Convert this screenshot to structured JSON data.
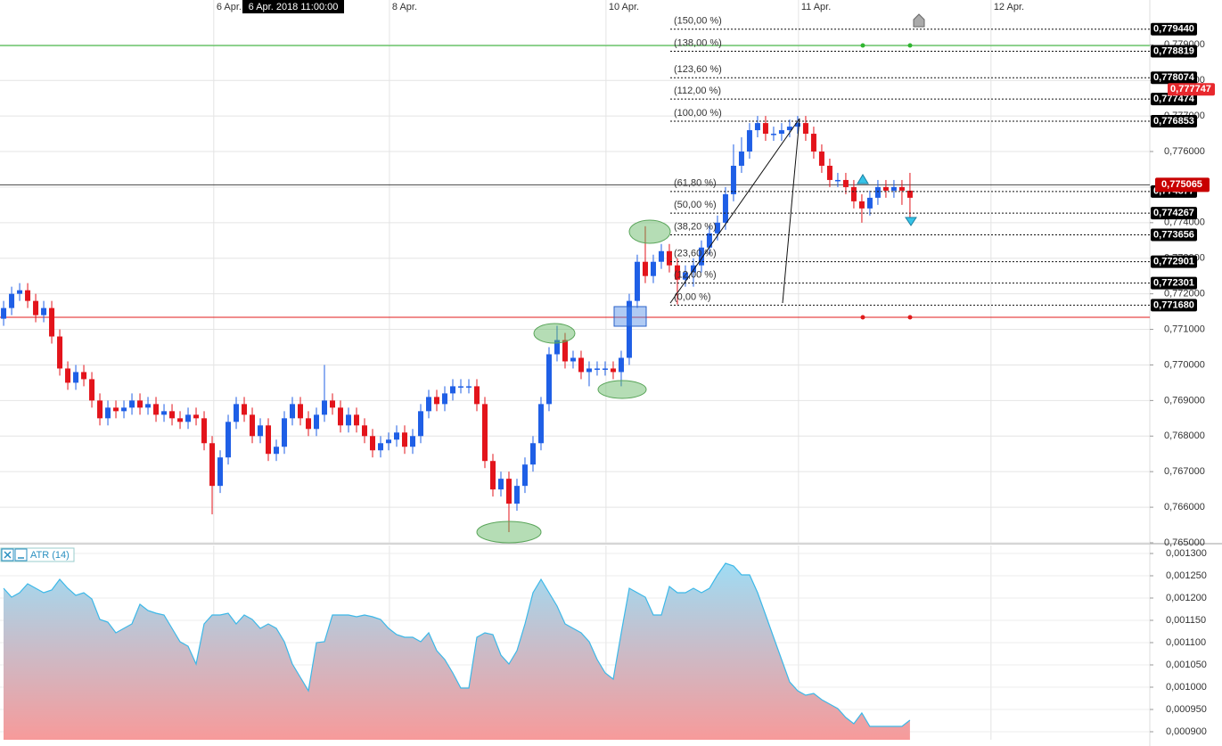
{
  "chart_data": [
    {
      "type": "candlestick",
      "crosshair_label": "6 Apr. 2018 11:00:00",
      "up_color": "#1f5fe6",
      "down_color": "#e3141b",
      "grid": true,
      "xlim": [
        -0.45,
        142.9
      ],
      "xticks": [
        {
          "value": 26.2,
          "label": "6 Apr."
        },
        {
          "value": 48.1,
          "label": "8 Apr."
        },
        {
          "value": 75.1,
          "label": "10 Apr."
        },
        {
          "value": 99.1,
          "label": "11 Apr."
        },
        {
          "value": 123.1,
          "label": "12 Apr."
        }
      ],
      "ylim": [
        0.765,
        0.78026
      ],
      "yticks": [
        {
          "value": 0.765,
          "label": "0,765000"
        },
        {
          "value": 0.766,
          "label": "0,766000"
        },
        {
          "value": 0.767,
          "label": "0,767000"
        },
        {
          "value": 0.768,
          "label": "0,768000"
        },
        {
          "value": 0.769,
          "label": "0,769000"
        },
        {
          "value": 0.77,
          "label": "0,770000"
        },
        {
          "value": 0.771,
          "label": "0,771000"
        },
        {
          "value": 0.772,
          "label": "0,772000"
        },
        {
          "value": 0.773,
          "label": "0,773000"
        },
        {
          "value": 0.774,
          "label": "0,774000"
        },
        {
          "value": 0.775,
          "label": "0,775000"
        },
        {
          "value": 0.776,
          "label": "0,776000"
        },
        {
          "value": 0.777,
          "label": "0,777000"
        },
        {
          "value": 0.778,
          "label": "0,778000"
        },
        {
          "value": 0.779,
          "label": "0,779000"
        }
      ],
      "open": [
        0.7713,
        0.7716,
        0.772,
        0.7721,
        0.7718,
        0.7714,
        0.7716,
        0.7708,
        0.7699,
        0.7695,
        0.7698,
        0.7696,
        0.769,
        0.7685,
        0.7688,
        0.7687,
        0.7688,
        0.769,
        0.7688,
        0.7689,
        0.7686,
        0.7687,
        0.7685,
        0.7684,
        0.7686,
        0.7685,
        0.7678,
        0.7666,
        0.7674,
        0.7684,
        0.7689,
        0.7686,
        0.768,
        0.7683,
        0.7675,
        0.7677,
        0.7685,
        0.7689,
        0.7685,
        0.7682,
        0.7686,
        0.769,
        0.7688,
        0.7683,
        0.7686,
        0.7683,
        0.768,
        0.7676,
        0.7678,
        0.7679,
        0.7681,
        0.7677,
        0.768,
        0.7687,
        0.7691,
        0.7689,
        0.7692,
        0.7694,
        0.7694,
        0.7694,
        0.7689,
        0.7673,
        0.7665,
        0.7668,
        0.7661,
        0.7666,
        0.7672,
        0.7678,
        0.7689,
        0.7703,
        0.7707,
        0.7701,
        0.7702,
        0.7698,
        0.7699,
        0.7699,
        0.7699,
        0.7698,
        0.7702,
        0.7718,
        0.7729,
        0.7725,
        0.7729,
        0.7732,
        0.7728,
        0.7724,
        0.7726,
        0.7728,
        0.7733,
        0.7737,
        0.774,
        0.7748,
        0.7756,
        0.776,
        0.7766,
        0.7768,
        0.7765,
        0.7765,
        0.7766,
        0.7767,
        0.7768,
        0.7765,
        0.776,
        0.7756,
        0.7752,
        0.7752,
        0.775,
        0.7746,
        0.7744,
        0.7747,
        0.775,
        0.7749,
        0.775,
        0.7749
      ],
      "high": [
        0.7718,
        0.7722,
        0.7723,
        0.7723,
        0.772,
        0.7718,
        0.7718,
        0.771,
        0.7701,
        0.77,
        0.77,
        0.7698,
        0.7692,
        0.769,
        0.769,
        0.769,
        0.7692,
        0.7692,
        0.7691,
        0.7691,
        0.7689,
        0.7689,
        0.7687,
        0.7688,
        0.7688,
        0.7687,
        0.768,
        0.7676,
        0.7686,
        0.7691,
        0.7691,
        0.7688,
        0.7685,
        0.7685,
        0.7679,
        0.7687,
        0.7691,
        0.7691,
        0.7687,
        0.7688,
        0.77,
        0.7692,
        0.769,
        0.7688,
        0.7688,
        0.7685,
        0.7682,
        0.768,
        0.7681,
        0.7683,
        0.7683,
        0.7682,
        0.7689,
        0.7693,
        0.7693,
        0.7694,
        0.7696,
        0.7696,
        0.7696,
        0.7696,
        0.7691,
        0.7675,
        0.767,
        0.767,
        0.7668,
        0.7674,
        0.768,
        0.7691,
        0.7705,
        0.7711,
        0.7709,
        0.7704,
        0.7704,
        0.7701,
        0.7701,
        0.7701,
        0.7701,
        0.7704,
        0.772,
        0.7731,
        0.7739,
        0.7731,
        0.7734,
        0.7734,
        0.773,
        0.7728,
        0.773,
        0.7735,
        0.7739,
        0.7742,
        0.775,
        0.7762,
        0.7764,
        0.7768,
        0.777,
        0.777,
        0.7767,
        0.7768,
        0.7769,
        0.777,
        0.777,
        0.7767,
        0.7762,
        0.7758,
        0.7754,
        0.7754,
        0.7752,
        0.7748,
        0.7749,
        0.7752,
        0.7752,
        0.7752,
        0.7752,
        0.7754
      ],
      "low": [
        0.7711,
        0.7714,
        0.7718,
        0.7716,
        0.7712,
        0.7712,
        0.7706,
        0.7697,
        0.7693,
        0.7693,
        0.7694,
        0.7688,
        0.7683,
        0.7683,
        0.7685,
        0.7685,
        0.7686,
        0.7686,
        0.7686,
        0.7684,
        0.7684,
        0.7683,
        0.7682,
        0.7682,
        0.7683,
        0.7676,
        0.7658,
        0.7664,
        0.7672,
        0.7682,
        0.7684,
        0.7678,
        0.7678,
        0.7673,
        0.7673,
        0.7675,
        0.7683,
        0.7683,
        0.768,
        0.768,
        0.7684,
        0.7686,
        0.7681,
        0.7681,
        0.7681,
        0.7678,
        0.7674,
        0.7674,
        0.7676,
        0.7677,
        0.7675,
        0.7675,
        0.7678,
        0.7685,
        0.7687,
        0.7687,
        0.769,
        0.7692,
        0.7692,
        0.7687,
        0.7671,
        0.7663,
        0.7663,
        0.7653,
        0.7659,
        0.7664,
        0.767,
        0.7676,
        0.7687,
        0.7701,
        0.7699,
        0.7699,
        0.7696,
        0.7694,
        0.7697,
        0.7697,
        0.7696,
        0.7694,
        0.77,
        0.7716,
        0.7723,
        0.7723,
        0.7727,
        0.7726,
        0.7717,
        0.7722,
        0.7722,
        0.7726,
        0.7731,
        0.7735,
        0.7738,
        0.7746,
        0.7754,
        0.7758,
        0.7764,
        0.7763,
        0.7763,
        0.7763,
        0.7764,
        0.7765,
        0.7763,
        0.7758,
        0.7754,
        0.775,
        0.775,
        0.7748,
        0.7744,
        0.774,
        0.7742,
        0.7745,
        0.7747,
        0.7747,
        0.7745,
        0.774
      ],
      "close": [
        0.7716,
        0.772,
        0.7721,
        0.7718,
        0.7714,
        0.7716,
        0.7708,
        0.7699,
        0.7695,
        0.7698,
        0.7696,
        0.769,
        0.7685,
        0.7688,
        0.7687,
        0.7688,
        0.769,
        0.7688,
        0.7689,
        0.7686,
        0.7687,
        0.7685,
        0.7684,
        0.7686,
        0.7685,
        0.7678,
        0.7666,
        0.7674,
        0.7684,
        0.7689,
        0.7686,
        0.768,
        0.7683,
        0.7675,
        0.7677,
        0.7685,
        0.7689,
        0.7685,
        0.7682,
        0.7686,
        0.769,
        0.7688,
        0.7683,
        0.7686,
        0.7683,
        0.768,
        0.7676,
        0.7678,
        0.7679,
        0.7681,
        0.7677,
        0.768,
        0.7687,
        0.7691,
        0.7689,
        0.7692,
        0.7694,
        0.7694,
        0.7694,
        0.7689,
        0.7673,
        0.7665,
        0.7668,
        0.7661,
        0.7666,
        0.7672,
        0.7678,
        0.7689,
        0.7703,
        0.7707,
        0.7701,
        0.7702,
        0.7698,
        0.7699,
        0.7699,
        0.7699,
        0.7698,
        0.7702,
        0.7718,
        0.7729,
        0.7725,
        0.7729,
        0.7732,
        0.7728,
        0.7724,
        0.7726,
        0.7728,
        0.7733,
        0.7737,
        0.774,
        0.7748,
        0.7756,
        0.776,
        0.7766,
        0.7768,
        0.7765,
        0.7765,
        0.7766,
        0.7767,
        0.7768,
        0.7765,
        0.776,
        0.7756,
        0.7752,
        0.7752,
        0.775,
        0.7746,
        0.7744,
        0.7747,
        0.775,
        0.7749,
        0.775,
        0.7749,
        0.7747
      ],
      "fib_levels": {
        "labels": [
          "(150,00 %)",
          "(138,00 %)",
          "(123,60 %)",
          "(112,00 %)",
          "(100,00 %)",
          "(61,80 %)",
          "(50,00 %)",
          "(38,20 %)",
          "(23,60 %)",
          "(12,00 %)",
          "(0,00 %)"
        ],
        "values": [
          0.77944,
          0.778819,
          0.778074,
          0.777474,
          0.776853,
          0.774877,
          0.774267,
          0.773656,
          0.772901,
          0.772301,
          0.77168
        ],
        "value_labels": [
          "0,779440",
          "0,778819",
          "0,778074",
          "0,777474",
          "0,776853",
          "0,774877",
          "0,774267",
          "0,773656",
          "0,772901",
          "0,772301",
          "0,771680"
        ]
      },
      "hlines": [
        {
          "value": 0.77898,
          "color": "#2fb52f"
        },
        {
          "value": 0.77134,
          "color": "#e01b1b"
        }
      ],
      "last_price": {
        "value": 0.775065,
        "label": "0,775065",
        "color": "#c80000"
      },
      "ask_price": {
        "value": 0.777747,
        "label": "0,777747",
        "color": "#e8282d"
      }
    },
    {
      "type": "area",
      "title": "ATR (14)",
      "color": "#3cb8e8",
      "xlim": [
        -0.45,
        142.9
      ],
      "ylim": [
        0.000882,
        0.001318
      ],
      "yticks": [
        {
          "value": 0.0009,
          "label": "0,000900"
        },
        {
          "value": 0.00095,
          "label": "0,000950"
        },
        {
          "value": 0.001,
          "label": "0,001000"
        },
        {
          "value": 0.00105,
          "label": "0,001050"
        },
        {
          "value": 0.0011,
          "label": "0,001100"
        },
        {
          "value": 0.00115,
          "label": "0,001150"
        },
        {
          "value": 0.0012,
          "label": "0,001200"
        },
        {
          "value": 0.00125,
          "label": "0,001250"
        },
        {
          "value": 0.0013,
          "label": "0,001300"
        }
      ],
      "values": [
        0.001222,
        0.001202,
        0.001212,
        0.001232,
        0.001222,
        0.001212,
        0.001218,
        0.001242,
        0.001222,
        0.001206,
        0.001212,
        0.001198,
        0.001152,
        0.001146,
        0.001122,
        0.001132,
        0.001142,
        0.001186,
        0.001172,
        0.001166,
        0.001162,
        0.001132,
        0.001102,
        0.001092,
        0.001052,
        0.001142,
        0.001162,
        0.001162,
        0.001166,
        0.001142,
        0.001162,
        0.001152,
        0.001132,
        0.001142,
        0.001132,
        0.001102,
        0.001052,
        0.001022,
        0.000992,
        0.0011,
        0.001102,
        0.001162,
        0.001162,
        0.001162,
        0.001158,
        0.001162,
        0.001158,
        0.001152,
        0.001132,
        0.001118,
        0.001112,
        0.001112,
        0.001102,
        0.001122,
        0.001082,
        0.001062,
        0.001032,
        0.000998,
        0.000998,
        0.001112,
        0.001122,
        0.001118,
        0.001072,
        0.001052,
        0.001082,
        0.001142,
        0.001212,
        0.001242,
        0.001212,
        0.001182,
        0.001142,
        0.001132,
        0.001122,
        0.001102,
        0.001062,
        0.001032,
        0.001018,
        0.001122,
        0.001222,
        0.001212,
        0.001202,
        0.001162,
        0.001162,
        0.001226,
        0.001212,
        0.001212,
        0.001222,
        0.001212,
        0.001222,
        0.001252,
        0.001278,
        0.001272,
        0.001252,
        0.001252,
        0.001212,
        0.001162,
        0.001112,
        0.001062,
        0.001012,
        0.000992,
        0.000982,
        0.000986,
        0.000972,
        0.000962,
        0.000952,
        0.000932,
        0.000918,
        0.000942,
        0.000912,
        0.000912,
        0.000912,
        0.000912,
        0.000912,
        0.000926
      ]
    }
  ]
}
